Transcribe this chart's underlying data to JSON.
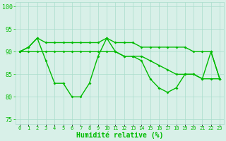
{
  "line1": [
    90,
    91,
    93,
    88,
    83,
    83,
    80,
    80,
    83,
    89,
    93,
    90,
    89,
    89,
    88,
    84,
    82,
    81,
    82,
    85,
    85,
    84,
    90,
    84
  ],
  "line2": [
    90,
    91,
    93,
    92,
    92,
    92,
    92,
    92,
    92,
    92,
    93,
    92,
    92,
    92,
    91,
    91,
    91,
    91,
    91,
    91,
    90,
    90,
    90,
    84
  ],
  "line3": [
    90,
    90,
    90,
    90,
    90,
    90,
    90,
    90,
    90,
    90,
    90,
    90,
    89,
    89,
    89,
    88,
    87,
    86,
    85,
    85,
    85,
    84,
    84,
    84
  ],
  "x": [
    0,
    1,
    2,
    3,
    4,
    5,
    6,
    7,
    8,
    9,
    10,
    11,
    12,
    13,
    14,
    15,
    16,
    17,
    18,
    19,
    20,
    21,
    22,
    23
  ],
  "xlabel": "Humidité relative (%)",
  "ylim": [
    74,
    101
  ],
  "xlim": [
    -0.5,
    23.5
  ],
  "yticks": [
    75,
    80,
    85,
    90,
    95,
    100
  ],
  "xtick_labels": [
    "0",
    "1",
    "2",
    "3",
    "4",
    "5",
    "6",
    "7",
    "8",
    "9",
    "10",
    "11",
    "12",
    "13",
    "14",
    "15",
    "16",
    "17",
    "18",
    "19",
    "20",
    "21",
    "22",
    "23"
  ],
  "line_color": "#00bb00",
  "bg_color": "#d8f0e8",
  "grid_color": "#aaddcc",
  "marker": "D",
  "markersize": 2.0,
  "linewidth": 1.0,
  "xlabel_fontsize": 7,
  "tick_fontsize": 5,
  "ytick_fontsize": 6
}
